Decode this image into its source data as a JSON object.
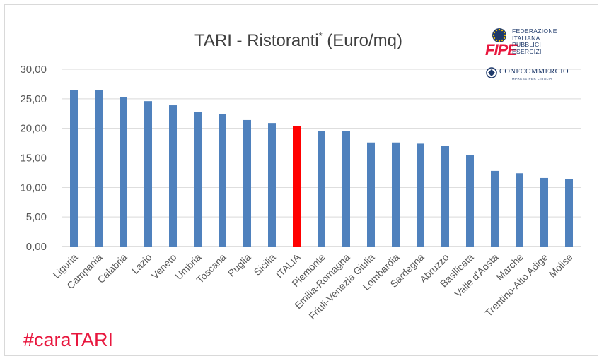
{
  "chart_data": {
    "type": "bar",
    "title": "TARI - Ristoranti",
    "title_superscript": "*",
    "title_units": " (Euro/mq)",
    "categories": [
      "Liguria",
      "Campania",
      "Calabria",
      "Lazio",
      "Veneto",
      "Umbria",
      "Toscana",
      "Puglia",
      "Sicilia",
      "ITALIA",
      "Piemonte",
      "Emilia-Romagna",
      "Friuli-Venezia Giulia",
      "Lombardia",
      "Sardegna",
      "Abruzzo",
      "Basilicata",
      "Valle d'Aosta",
      "Marche",
      "Trentino-Alto Adige",
      "Molise"
    ],
    "values": [
      26.5,
      26.5,
      25.3,
      24.6,
      23.9,
      22.8,
      22.4,
      21.4,
      20.9,
      20.4,
      19.6,
      19.5,
      17.6,
      17.6,
      17.4,
      17.0,
      15.5,
      12.8,
      12.4,
      11.6,
      11.4
    ],
    "highlight_index": 9,
    "colors": {
      "bar": "#4f81bd",
      "highlight": "#ff0000",
      "grid": "#d9d9d9"
    },
    "ylim": [
      0,
      30
    ],
    "yticks": [
      "0,00",
      "5,00",
      "10,00",
      "15,00",
      "20,00",
      "25,00",
      "30,00"
    ],
    "ytick_values": [
      0,
      5,
      10,
      15,
      20,
      25,
      30
    ],
    "xlabel": "",
    "ylabel": "",
    "grid": true
  },
  "hashtag": "#caraTARI",
  "logo": {
    "fipe_lines": [
      "FEDERAZIONE",
      "ITALIANA",
      "PUBBLICI",
      "ESERCIZI"
    ],
    "fipe_word": "FIPE",
    "conf_word": "CONFCOMMERCIO",
    "conf_sub": "IMPRESE PER L'ITALIA",
    "colors": {
      "navy": "#1f3a6b",
      "red": "#e8173e"
    }
  }
}
